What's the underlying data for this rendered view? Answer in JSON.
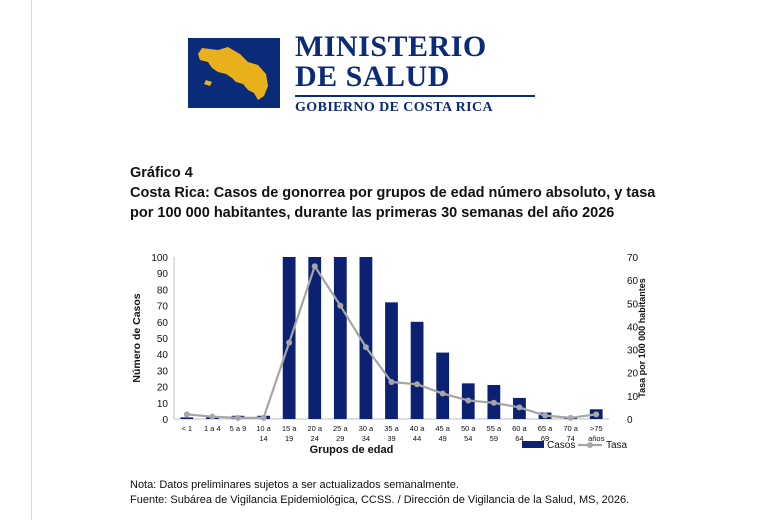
{
  "header": {
    "logo_line1": "MINISTERIO",
    "logo_line2": "DE SALUD",
    "logo_line3": "GOBIERNO DE COSTA RICA",
    "brand_color": "#0a2a7a",
    "logo_map_color": "#e8b11c"
  },
  "figure": {
    "label": "Gráfico 4",
    "title_line1": "Costa Rica: Casos de gonorrea por grupos de edad número absoluto, y tasa",
    "title_line2": "por 100 000 habitantes, durante las primeras 30 semanas del año 2026"
  },
  "chart_data": {
    "type": "bar",
    "categories": [
      [
        "< 1"
      ],
      [
        "1 a 4"
      ],
      [
        "5 a 9"
      ],
      [
        "10 a",
        "14"
      ],
      [
        "15 a",
        "19"
      ],
      [
        "20 a",
        "24"
      ],
      [
        "25 a",
        "29"
      ],
      [
        "30 a",
        "34"
      ],
      [
        "35 a",
        "39"
      ],
      [
        "40 a",
        "44"
      ],
      [
        "45 a",
        "49"
      ],
      [
        "50 a",
        "54"
      ],
      [
        "55 a",
        "59"
      ],
      [
        "60 a",
        "64"
      ],
      [
        "65 a",
        "69"
      ],
      [
        "70 a",
        "74"
      ],
      [
        ">75",
        "años"
      ]
    ],
    "xlabel": "Grupos de edad",
    "ylabel": "Número de  Casos",
    "y2label": "Tasa por 100 000 habitantes",
    "ylim": [
      0,
      100
    ],
    "y2lim": [
      0,
      70
    ],
    "yticks": [
      0,
      10,
      20,
      30,
      40,
      50,
      60,
      70,
      80,
      90,
      100
    ],
    "y2ticks": [
      0,
      10,
      20,
      30,
      40,
      50,
      60,
      70
    ],
    "grid": false,
    "legend_position": "bottom-right",
    "series": [
      {
        "name": "Casos",
        "type": "bar",
        "axis": "left",
        "color": "#0d2173",
        "values": [
          1,
          1,
          2,
          2,
          100,
          100,
          100,
          100,
          72,
          60,
          41,
          22,
          21,
          13,
          4,
          1,
          6
        ]
      },
      {
        "name": "Tasa",
        "type": "line",
        "axis": "right",
        "color": "#a6a6a6",
        "values": [
          2,
          1,
          0.5,
          0.5,
          33,
          66,
          49,
          31,
          16,
          15,
          11,
          8,
          7,
          5,
          1.5,
          0.5,
          2
        ]
      }
    ]
  },
  "footer": {
    "note": "Nota: Datos preliminares sujetos a ser actualizados semanalmente.",
    "source": "Fuente: Subárea de Vigilancia Epidemiológica, CCSS. / Dirección de Vigilancia de la Salud, MS, 2026."
  }
}
